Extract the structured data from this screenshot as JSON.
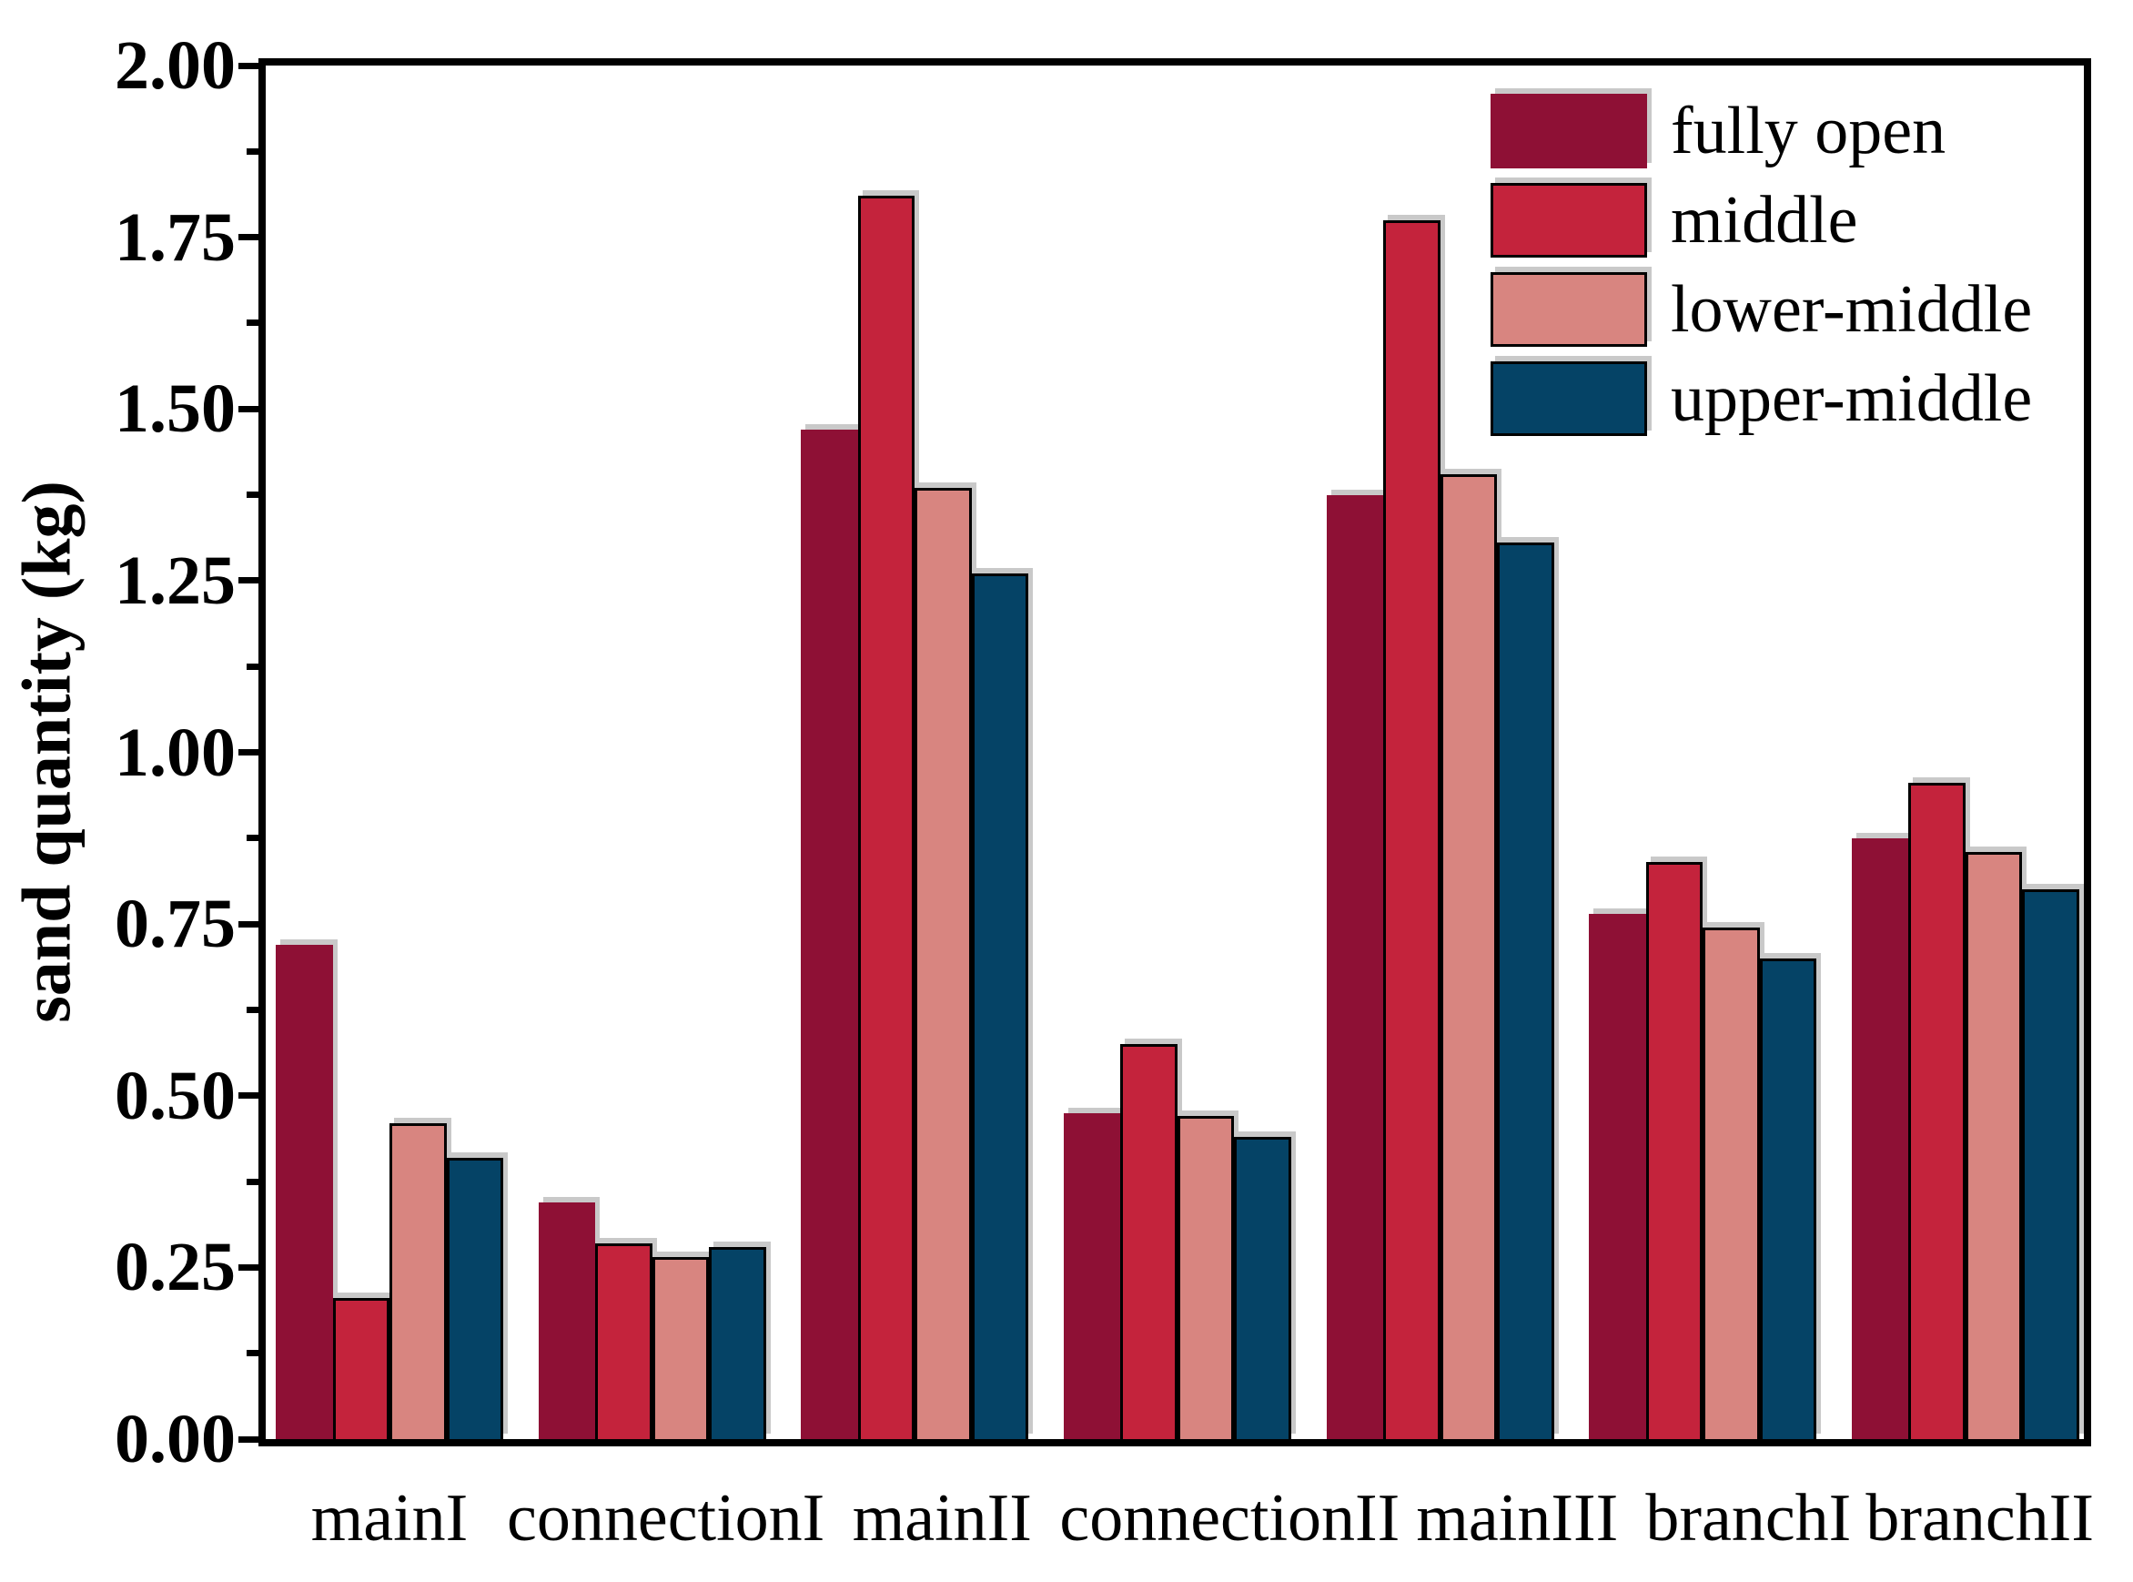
{
  "chart_data": {
    "type": "bar",
    "title": "",
    "categories": [
      "mainI",
      "connectionI",
      "mainII",
      "connectionII",
      "mainIII",
      "branchI",
      "branchII"
    ],
    "series": [
      {
        "name": "fully open",
        "color": "#8E1035",
        "values": [
          0.72,
          0.345,
          1.47,
          0.475,
          1.375,
          0.765,
          0.875
        ]
      },
      {
        "name": "middle",
        "color": "#C4233C",
        "values": [
          0.205,
          0.285,
          1.81,
          0.575,
          1.775,
          0.84,
          0.955
        ]
      },
      {
        "name": "lower-middle",
        "color": "#D88580",
        "values": [
          0.46,
          0.265,
          1.385,
          0.47,
          1.405,
          0.745,
          0.855
        ]
      },
      {
        "name": "upper-middle",
        "color": "#054366",
        "values": [
          0.41,
          0.28,
          1.26,
          0.44,
          1.305,
          0.7,
          0.8
        ]
      }
    ],
    "xlabel": "",
    "ylabel": "sand quantity (kg)",
    "ylim": [
      0,
      2
    ],
    "y_major_tick_labels": [
      "0.00",
      "0.25",
      "0.50",
      "0.75",
      "1.00",
      "1.25",
      "1.50",
      "1.75",
      "2.00"
    ],
    "y_major_tick_step": 0.25,
    "y_minor_tick_step": 0.125,
    "grid": false,
    "legend_position": "top-right",
    "bar_outline_color": "#000000",
    "shadow_color": "#c9c9c9",
    "axis_color": "#000000"
  }
}
